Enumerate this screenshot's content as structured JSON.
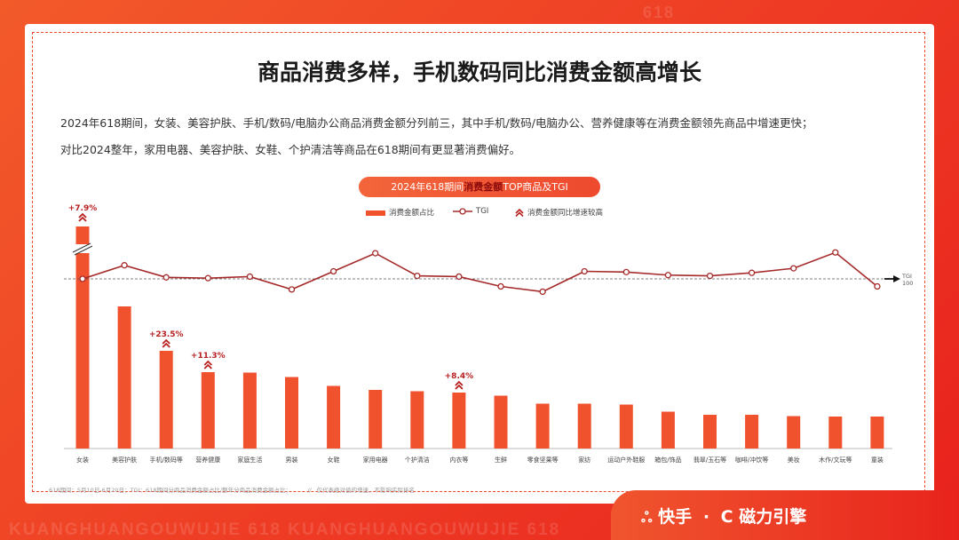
{
  "watermarks": {
    "top": "618",
    "bottom": "KUANGHUANGOUWUJIE  618  KUANGHUANGOUWUJIE  618"
  },
  "title": "商品消费多样，手机数码同比消费金额高增长",
  "desc_line1": "2024年618期间，女装、美容护肤、手机/数码/电脑办公商品消费金额分列前三，其中手机/数码/电脑办公、营养健康等在消费金额领先商品中增速更快；",
  "desc_line2": "对比2024整年，家用电器、美容护肤、女鞋、个护清洁等商品在618期间有更显著消费偏好。",
  "chart_title": {
    "pre": "2024年618期间",
    "em": "消费金额",
    "post": "TOP商品及TGI"
  },
  "legend": {
    "bar": "消费金额占比",
    "line": "TGI",
    "marker": "消费金额同比增速较高"
  },
  "footnote": "618期间：5月10日-6月20日；TGI：618期间分商品消费金额占比/整年分商品消费金额占比；",
  "footnote2": "仅代表绝对值的增速，不影响实际排名",
  "tgi_ref_label": "TGI",
  "tgi_ref_value": "100",
  "brand": {
    "kuaishou": "快手",
    "sep": "·",
    "cili": "磁力引擎"
  },
  "colors": {
    "bar": "#f0522e",
    "line": "#a52a2a",
    "accent": "#ee3b24",
    "marker": "#b81f1f"
  },
  "chart_data": {
    "type": "bar",
    "categories": [
      "女装",
      "美容护肤",
      "手机/数码等",
      "营养健康",
      "家庭生活",
      "男装",
      "女鞋",
      "家用电器",
      "个护清洁",
      "内衣等",
      "生鲜",
      "零食坚果等",
      "家纺",
      "运动户外鞋服",
      "箱包/饰品",
      "翡翠/玉石等",
      "咖啡/冲饮等",
      "美妆",
      "木作/文玩等",
      "童装"
    ],
    "series": [
      {
        "name": "消费金额占比",
        "type": "bar",
        "values": [
          100,
          64,
          44,
          34.4,
          34.2,
          32.2,
          28.2,
          26.4,
          25.8,
          25.2,
          23.8,
          20.2,
          20.2,
          19.8,
          16.6,
          15.2,
          15.2,
          14.6,
          14.4,
          14.4
        ]
      },
      {
        "name": "TGI",
        "type": "line",
        "values": [
          100,
          109,
          101,
          100.5,
          101.5,
          93,
          105,
          117,
          102,
          101.5,
          95,
          91.5,
          105,
          104.5,
          102.5,
          102,
          104,
          107,
          117.5,
          95
        ]
      }
    ],
    "growth_labels": [
      {
        "category": "女装",
        "label": "+7.9%"
      },
      {
        "category": "手机/数码等",
        "label": "+23.5%"
      },
      {
        "category": "营养健康",
        "label": "+11.3%"
      },
      {
        "category": "内衣等",
        "label": "+8.4%"
      }
    ],
    "tgi_reference": 100,
    "axis_break": "女装"
  }
}
